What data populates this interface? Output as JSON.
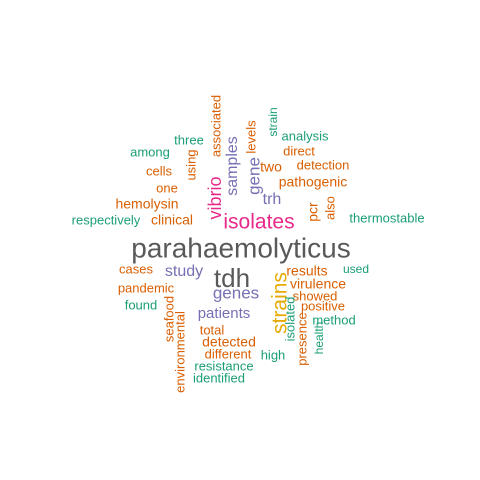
{
  "colors": {
    "gray": "#595959",
    "orange": "#d95f02",
    "green": "#1b9e77",
    "purple": "#7570b3",
    "magenta": "#e7298a",
    "gold": "#e6ab02"
  },
  "words": [
    {
      "text": "parahaemolyticus",
      "color": "gray"
    },
    {
      "text": "tdh",
      "color": "gray"
    },
    {
      "text": "isolates",
      "color": "magenta"
    },
    {
      "text": "strains",
      "color": "gold"
    },
    {
      "text": "vibrio",
      "color": "magenta"
    },
    {
      "text": "genes",
      "color": "purple"
    },
    {
      "text": "gene",
      "color": "purple"
    },
    {
      "text": "samples",
      "color": "purple"
    },
    {
      "text": "study",
      "color": "purple"
    },
    {
      "text": "patients",
      "color": "purple"
    },
    {
      "text": "trh",
      "color": "purple"
    },
    {
      "text": "pathogenic",
      "color": "orange"
    },
    {
      "text": "clinical",
      "color": "orange"
    },
    {
      "text": "hemolysin",
      "color": "orange"
    },
    {
      "text": "results",
      "color": "orange"
    },
    {
      "text": "virulence",
      "color": "orange"
    },
    {
      "text": "showed",
      "color": "orange"
    },
    {
      "text": "positive",
      "color": "orange"
    },
    {
      "text": "detected",
      "color": "orange"
    },
    {
      "text": "total",
      "color": "orange"
    },
    {
      "text": "different",
      "color": "orange"
    },
    {
      "text": "pandemic",
      "color": "orange"
    },
    {
      "text": "cases",
      "color": "orange"
    },
    {
      "text": "pcr",
      "color": "orange"
    },
    {
      "text": "two",
      "color": "orange"
    },
    {
      "text": "one",
      "color": "orange"
    },
    {
      "text": "cells",
      "color": "orange"
    },
    {
      "text": "detection",
      "color": "orange"
    },
    {
      "text": "direct",
      "color": "orange"
    },
    {
      "text": "using",
      "color": "orange"
    },
    {
      "text": "associated",
      "color": "orange"
    },
    {
      "text": "levels",
      "color": "orange"
    },
    {
      "text": "seafood",
      "color": "orange"
    },
    {
      "text": "environmental",
      "color": "orange"
    },
    {
      "text": "presence",
      "color": "orange"
    },
    {
      "text": "also",
      "color": "orange"
    },
    {
      "text": "three",
      "color": "green"
    },
    {
      "text": "among",
      "color": "green"
    },
    {
      "text": "analysis",
      "color": "green"
    },
    {
      "text": "strain",
      "color": "green"
    },
    {
      "text": "respectively",
      "color": "green"
    },
    {
      "text": "thermostable",
      "color": "green"
    },
    {
      "text": "used",
      "color": "green"
    },
    {
      "text": "found",
      "color": "green"
    },
    {
      "text": "method",
      "color": "green"
    },
    {
      "text": "health",
      "color": "green"
    },
    {
      "text": "isolated",
      "color": "green"
    },
    {
      "text": "high",
      "color": "green"
    },
    {
      "text": "resistance",
      "color": "green"
    },
    {
      "text": "identified",
      "color": "green"
    }
  ]
}
